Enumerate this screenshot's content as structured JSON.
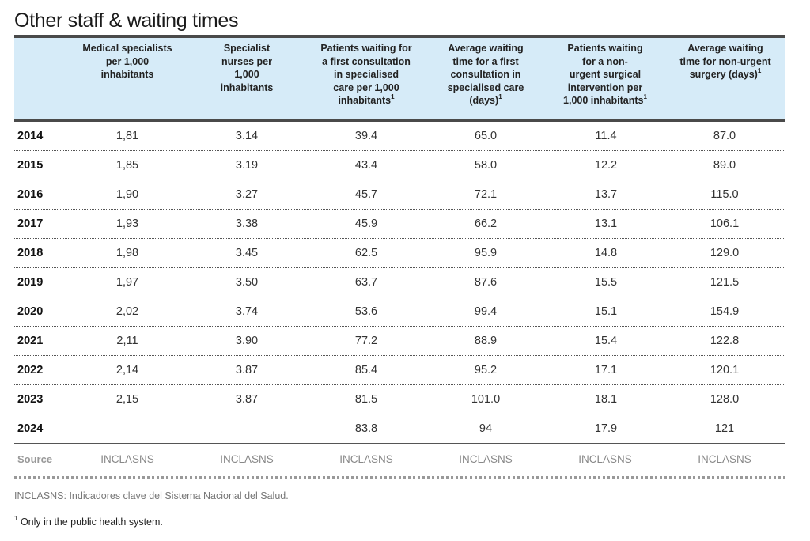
{
  "title": "Other staff & waiting times",
  "headers": [
    {
      "text": "",
      "sup": ""
    },
    {
      "text": "Medical specialists\nper 1,000\ninhabitants",
      "sup": ""
    },
    {
      "text": "Specialist\nnurses per\n1,000\ninhabitants",
      "sup": ""
    },
    {
      "text": "Patients waiting for\na first consultation\nin specialised\ncare per 1,000\ninhabitants",
      "sup": "1"
    },
    {
      "text": "Average waiting\ntime for a first\nconsultation in\nspecialised care\n(days)",
      "sup": "1"
    },
    {
      "text": "Patients waiting\nfor a non-\nurgent surgical\nintervention per\n1,000 inhabitants",
      "sup": "1"
    },
    {
      "text": "Average waiting\ntime for non-urgent\nsurgery (days)",
      "sup": "1"
    }
  ],
  "rows": [
    [
      "2014",
      "1,81",
      "3.14",
      "39.4",
      "65.0",
      "11.4",
      "87.0"
    ],
    [
      "2015",
      "1,85",
      "3.19",
      "43.4",
      "58.0",
      "12.2",
      "89.0"
    ],
    [
      "2016",
      "1,90",
      "3.27",
      "45.7",
      "72.1",
      "13.7",
      "115.0"
    ],
    [
      "2017",
      "1,93",
      "3.38",
      "45.9",
      "66.2",
      "13.1",
      "106.1"
    ],
    [
      "2018",
      "1,98",
      "3.45",
      "62.5",
      "95.9",
      "14.8",
      "129.0"
    ],
    [
      "2019",
      "1,97",
      "3.50",
      "63.7",
      "87.6",
      "15.5",
      "121.5"
    ],
    [
      "2020",
      "2,02",
      "3.74",
      "53.6",
      "99.4",
      "15.1",
      "154.9"
    ],
    [
      "2021",
      "2,11",
      "3.90",
      "77.2",
      "88.9",
      "15.4",
      "122.8"
    ],
    [
      "2022",
      "2,14",
      "3.87",
      "85.4",
      "95.2",
      "17.1",
      "120.1"
    ],
    [
      "2023",
      "2,15",
      "3.87",
      "81.5",
      "101.0",
      "18.1",
      "128.0"
    ],
    [
      "2024",
      "",
      "",
      "83.8",
      "94",
      "17.9",
      "121"
    ]
  ],
  "source": {
    "label": "Source",
    "values": [
      "INCLASNS",
      "INCLASNS",
      "INCLASNS",
      "INCLASNS",
      "INCLASNS",
      "INCLASNS"
    ]
  },
  "notes": {
    "abbreviation": "INCLASNS: Indicadores clave del Sistema Nacional del Salud.",
    "footnote_mark": "1",
    "footnote_text": "Only in the public health system."
  },
  "colors": {
    "header_bg": "#d6ebf8",
    "rule": "#4a4a4a"
  }
}
